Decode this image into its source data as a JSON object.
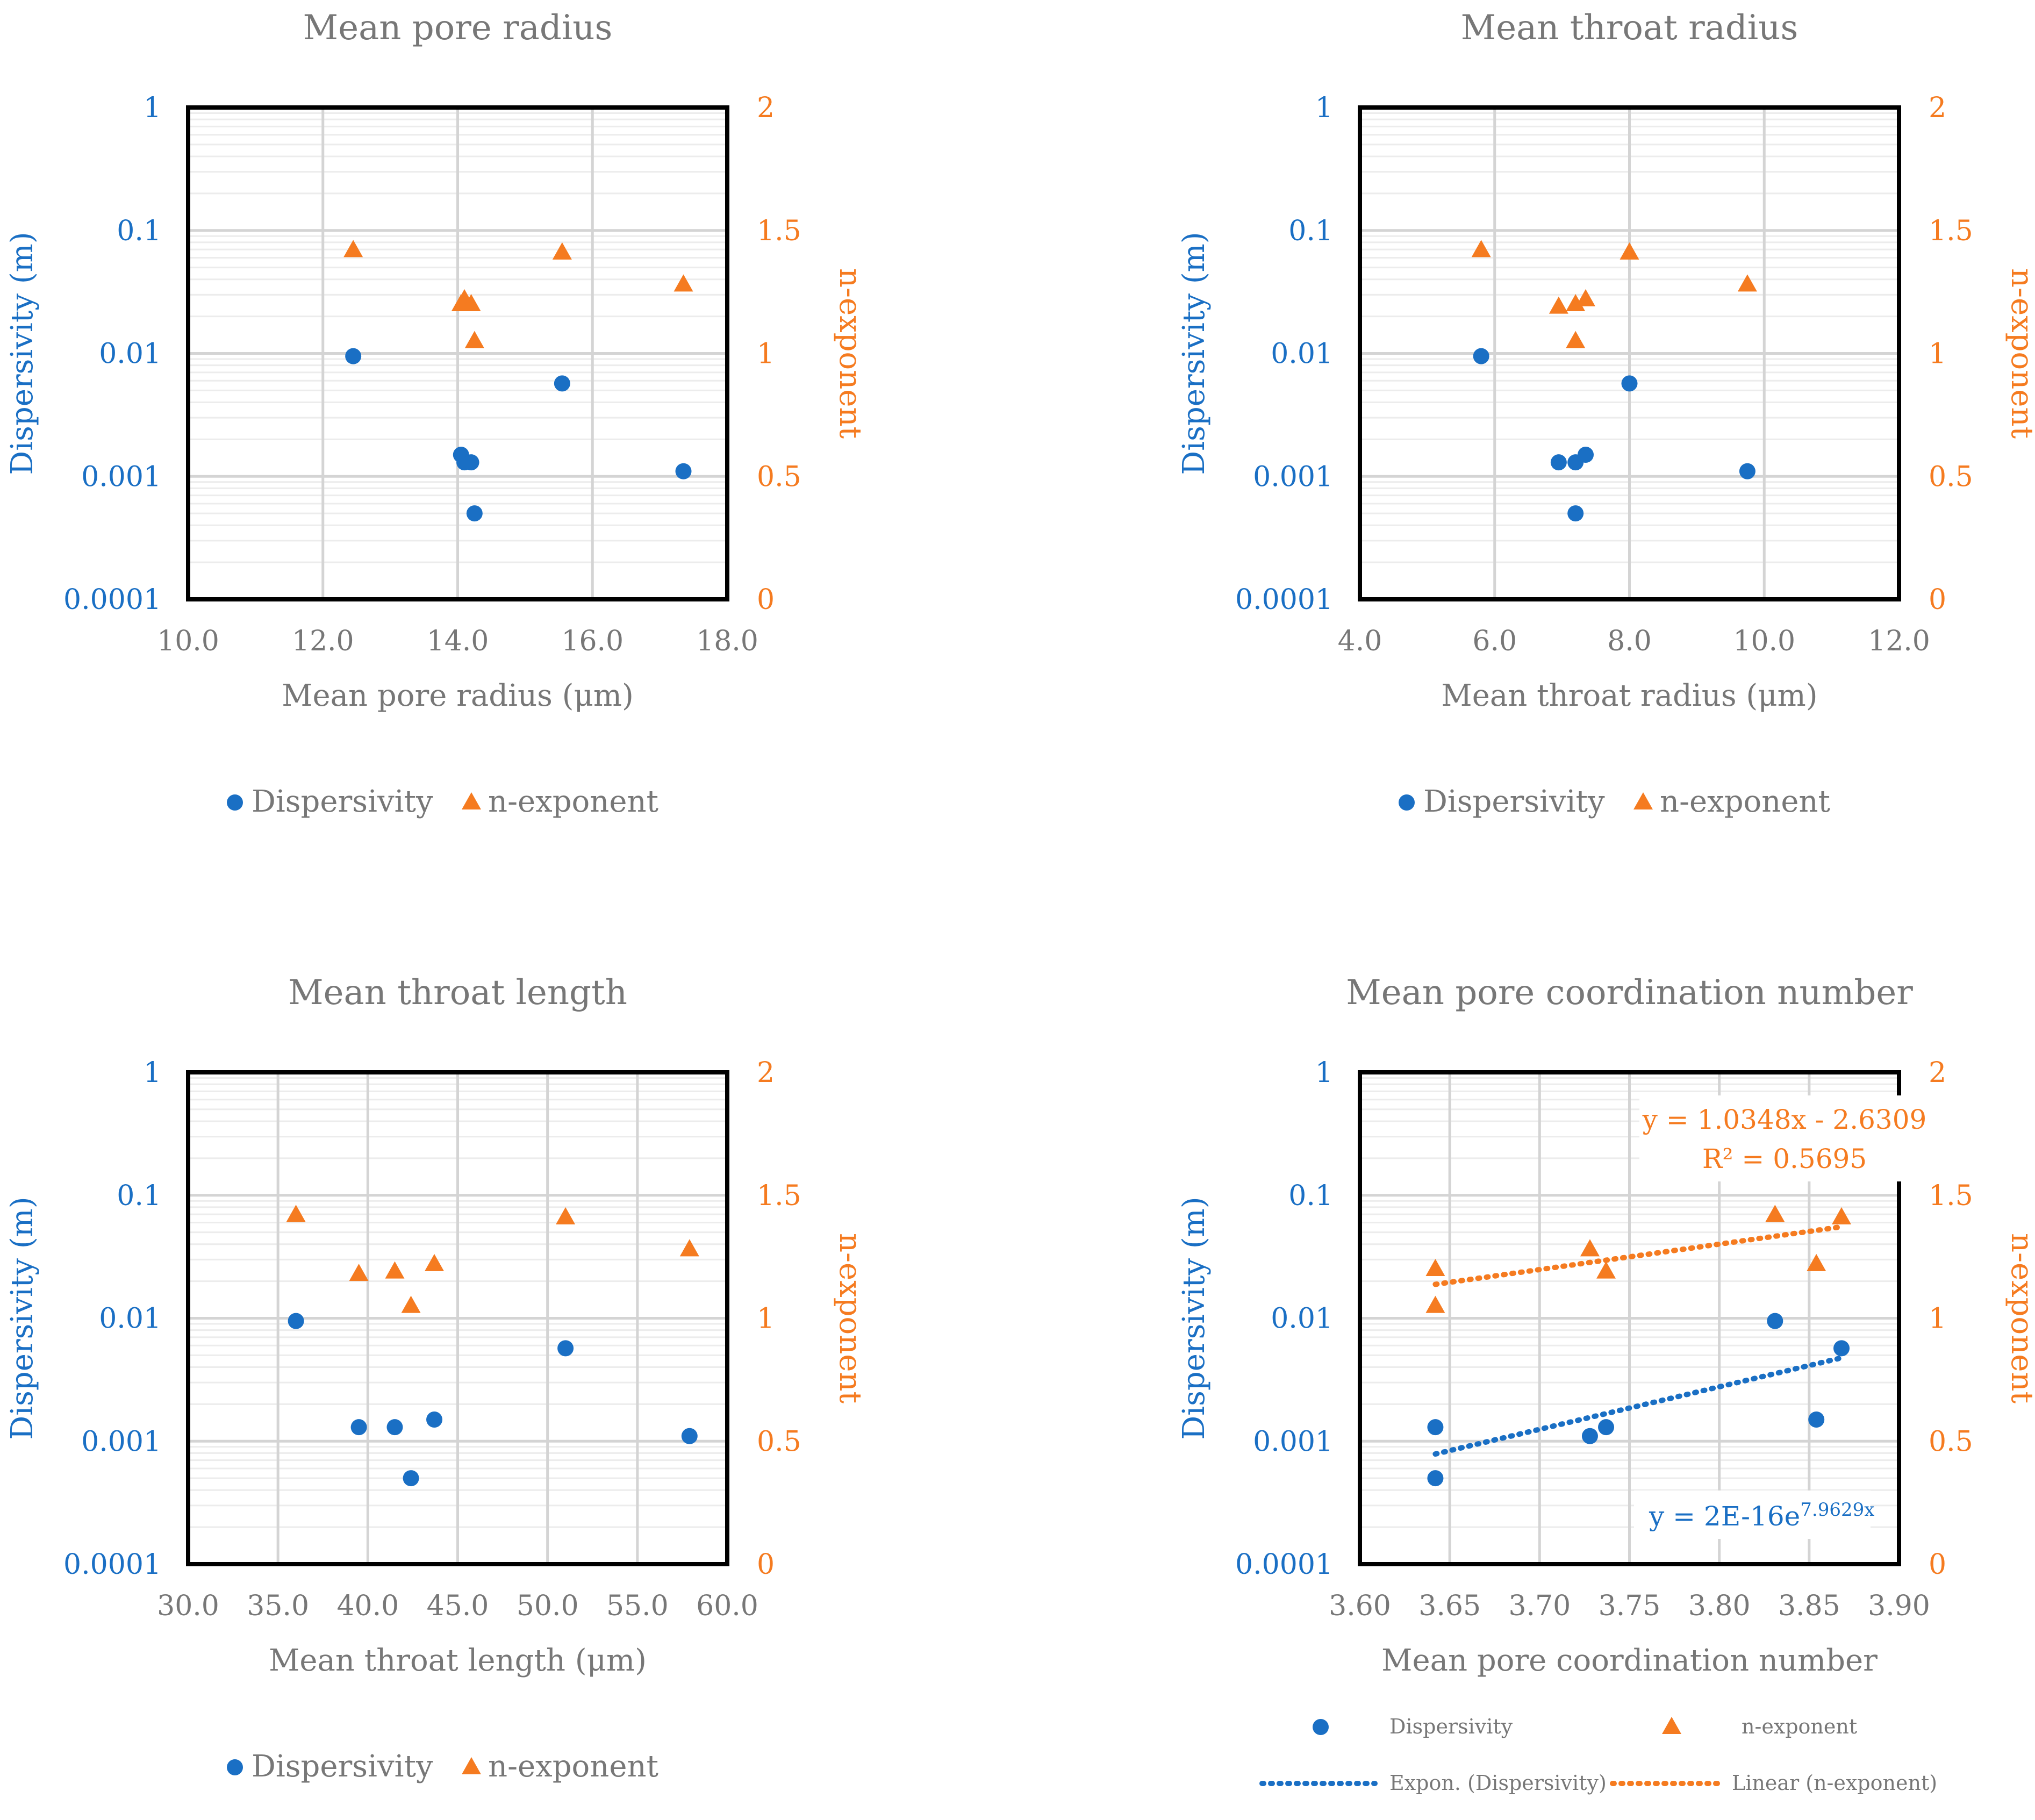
{
  "colors": {
    "dispersivity": "#1a6fc4",
    "n_exponent": "#f57b20",
    "title": "#777777",
    "axis_text": "#777777",
    "grid_major": "#d4d4d4",
    "grid_minor": "#ececec",
    "frame": "#000000"
  },
  "chart_data": [
    {
      "type": "scatter",
      "id": "pore-radius",
      "title": "Mean pore radius",
      "xlabel": "Mean pore radius (μm)",
      "ylabel": "Dispersivity (m)",
      "y2label": "n-exponent",
      "xlim": [
        10,
        18
      ],
      "xticks": [
        "10.0",
        "12.0",
        "14.0",
        "16.0",
        "18.0"
      ],
      "yscale": "log",
      "ylim": [
        0.0001,
        1
      ],
      "yticks": [
        "0.0001",
        "0.001",
        "0.01",
        "0.1",
        "1"
      ],
      "y2lim": [
        0,
        2
      ],
      "y2ticks": [
        "0",
        "0.5",
        "1",
        "1.5",
        "2"
      ],
      "series": [
        {
          "name": "Dispersivity",
          "axis": "left",
          "marker": "circle",
          "x": [
            12.45,
            14.05,
            14.1,
            14.2,
            14.25,
            15.55,
            17.35
          ],
          "y": [
            0.0095,
            0.0015,
            0.0013,
            0.0013,
            0.0005,
            0.0057,
            0.0011
          ]
        },
        {
          "name": "n-exponent",
          "axis": "right",
          "marker": "triangle",
          "x": [
            12.45,
            14.05,
            14.1,
            14.2,
            14.25,
            15.55,
            17.35
          ],
          "y": [
            1.42,
            1.2,
            1.22,
            1.2,
            1.05,
            1.41,
            1.28
          ]
        }
      ],
      "legend": [
        "Dispersivity",
        "n-exponent"
      ]
    },
    {
      "type": "scatter",
      "id": "throat-radius",
      "title": "Mean throat radius",
      "xlabel": "Mean throat radius (μm)",
      "ylabel": "Dispersivity (m)",
      "y2label": "n-exponent",
      "xlim": [
        4,
        12
      ],
      "xticks": [
        "4.0",
        "6.0",
        "8.0",
        "10.0",
        "12.0"
      ],
      "yscale": "log",
      "ylim": [
        0.0001,
        1
      ],
      "yticks": [
        "0.0001",
        "0.001",
        "0.01",
        "0.1",
        "1"
      ],
      "y2lim": [
        0,
        2
      ],
      "y2ticks": [
        "0",
        "0.5",
        "1",
        "1.5",
        "2"
      ],
      "series": [
        {
          "name": "Dispersivity",
          "axis": "left",
          "marker": "circle",
          "x": [
            5.8,
            6.95,
            7.2,
            7.2,
            7.35,
            8.0,
            9.75
          ],
          "y": [
            0.0095,
            0.0013,
            0.0013,
            0.0005,
            0.0015,
            0.0057,
            0.0011
          ]
        },
        {
          "name": "n-exponent",
          "axis": "right",
          "marker": "triangle",
          "x": [
            5.8,
            6.95,
            7.2,
            7.2,
            7.35,
            8.0,
            9.75
          ],
          "y": [
            1.42,
            1.19,
            1.2,
            1.05,
            1.22,
            1.41,
            1.28
          ]
        }
      ],
      "legend": [
        "Dispersivity",
        "n-exponent"
      ]
    },
    {
      "type": "scatter",
      "id": "throat-length",
      "title": "Mean throat length",
      "xlabel": "Mean throat length (μm)",
      "ylabel": "Dispersivity (m)",
      "y2label": "n-exponent",
      "xlim": [
        30,
        60
      ],
      "xticks": [
        "30.0",
        "35.0",
        "40.0",
        "45.0",
        "50.0",
        "55.0",
        "60.0"
      ],
      "yscale": "log",
      "ylim": [
        0.0001,
        1
      ],
      "yticks": [
        "0.0001",
        "0.001",
        "0.01",
        "0.1",
        "1"
      ],
      "y2lim": [
        0,
        2
      ],
      "y2ticks": [
        "0",
        "0.5",
        "1",
        "1.5",
        "2"
      ],
      "series": [
        {
          "name": "Dispersivity",
          "axis": "left",
          "marker": "circle",
          "x": [
            36.0,
            39.5,
            41.5,
            42.4,
            43.7,
            51.0,
            57.9
          ],
          "y": [
            0.0095,
            0.0013,
            0.0013,
            0.0005,
            0.0015,
            0.0057,
            0.0011
          ]
        },
        {
          "name": "n-exponent",
          "axis": "right",
          "marker": "triangle",
          "x": [
            36.0,
            39.5,
            41.5,
            42.4,
            43.7,
            51.0,
            57.9
          ],
          "y": [
            1.42,
            1.18,
            1.19,
            1.05,
            1.22,
            1.41,
            1.28
          ]
        }
      ],
      "legend": [
        "Dispersivity",
        "n-exponent"
      ]
    },
    {
      "type": "scatter",
      "id": "coordination-number",
      "title": "Mean pore coordination number",
      "xlabel": "Mean pore coordination number",
      "ylabel": "Dispersivity (m)",
      "y2label": "n-exponent",
      "xlim": [
        3.6,
        3.9
      ],
      "xticks": [
        "3.60",
        "3.65",
        "3.70",
        "3.75",
        "3.80",
        "3.85",
        "3.90"
      ],
      "yscale": "log",
      "ylim": [
        0.0001,
        1
      ],
      "yticks": [
        "0.0001",
        "0.001",
        "0.01",
        "0.1",
        "1"
      ],
      "y2lim": [
        0,
        2
      ],
      "y2ticks": [
        "0",
        "0.5",
        "1",
        "1.5",
        "2"
      ],
      "series": [
        {
          "name": "Dispersivity",
          "axis": "left",
          "marker": "circle",
          "x": [
            3.642,
            3.642,
            3.728,
            3.737,
            3.831,
            3.854,
            3.868
          ],
          "y": [
            0.0013,
            0.0005,
            0.0011,
            0.0013,
            0.0095,
            0.0015,
            0.0057
          ]
        },
        {
          "name": "n-exponent",
          "axis": "right",
          "marker": "triangle",
          "x": [
            3.642,
            3.642,
            3.728,
            3.737,
            3.831,
            3.854,
            3.868
          ],
          "y": [
            1.2,
            1.05,
            1.28,
            1.19,
            1.42,
            1.22,
            1.41
          ]
        }
      ],
      "trendlines": [
        {
          "name": "Expon. (Dispersivity)",
          "axis": "left",
          "kind": "exponential",
          "a": 2e-16,
          "b": 7.9629,
          "x_range": [
            3.642,
            3.868
          ],
          "equation": "y = 2E-16e",
          "exponent": "7.9629x"
        },
        {
          "name": "Linear (n-exponent)",
          "axis": "right",
          "kind": "linear",
          "slope": 1.0348,
          "intercept": -2.6309,
          "x_range": [
            3.642,
            3.868
          ],
          "equation": "y = 1.0348x - 2.6309",
          "r2": "R² = 0.5695"
        }
      ],
      "legend": [
        "Dispersivity",
        "n-exponent",
        "Expon. (Dispersivity)",
        "Linear (n-exponent)"
      ]
    }
  ]
}
